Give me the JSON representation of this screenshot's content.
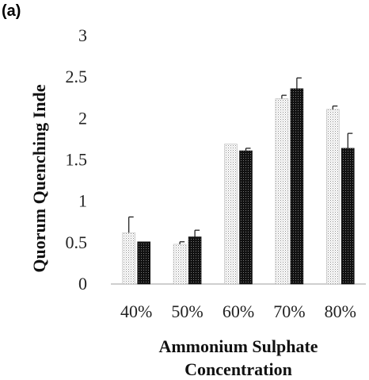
{
  "chart_data": {
    "type": "bar",
    "panel_label": "(a)",
    "categories": [
      "40%",
      "50%",
      "60%",
      "70%",
      "80%"
    ],
    "series": [
      {
        "values": [
          0.62,
          0.48,
          1.69,
          2.24,
          2.11
        ],
        "errors": [
          0.19,
          0.03,
          0.0,
          0.04,
          0.04
        ],
        "fill": "dotted"
      },
      {
        "values": [
          0.51,
          0.57,
          1.61,
          2.36,
          1.64
        ],
        "errors": [
          0.0,
          0.08,
          0.03,
          0.13,
          0.18
        ],
        "fill": "dark-dotted"
      }
    ],
    "ylim": [
      0,
      3
    ],
    "yticks": [
      "0",
      "0.5",
      "1",
      "1.5",
      "2",
      "2.5",
      "3"
    ],
    "ylabel": "Quorum Quenching Inde",
    "xlabel_lines": [
      "Ammonium Sulphate",
      "Concentration"
    ],
    "grid": false,
    "legend": "none"
  }
}
